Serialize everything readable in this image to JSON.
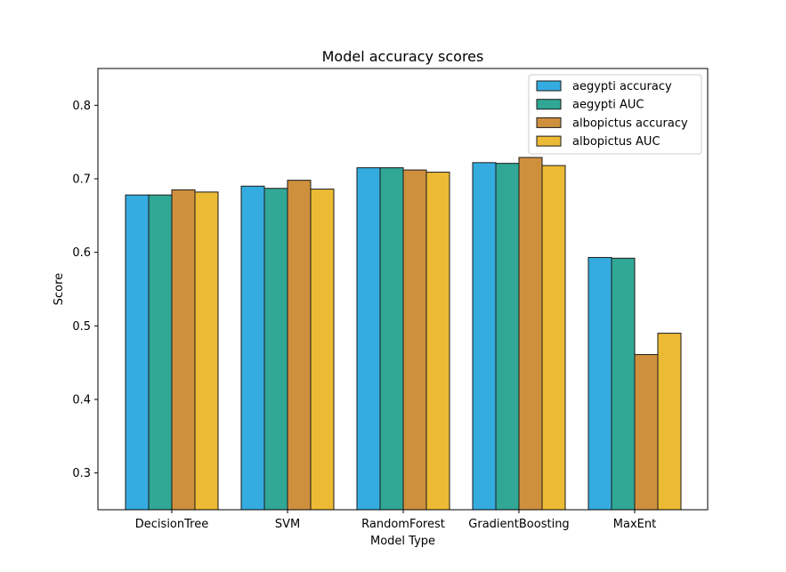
{
  "chart_data": {
    "type": "bar",
    "title": "Model accuracy scores",
    "xlabel": "Model Type",
    "ylabel": "Score",
    "ylim": [
      0.25,
      0.85
    ],
    "yticks": [
      "0.3",
      "0.4",
      "0.5",
      "0.6",
      "0.7",
      "0.8"
    ],
    "grid": false,
    "legend_position": "top-right",
    "categories": [
      "DecisionTree",
      "SVM",
      "RandomForest",
      "GradientBoosting",
      "MaxEnt"
    ],
    "series": [
      {
        "name": "aegypti accuracy",
        "color": "#35ace0",
        "values": [
          0.678,
          0.69,
          0.715,
          0.722,
          0.593
        ]
      },
      {
        "name": "aegypti AUC",
        "color": "#31a796",
        "values": [
          0.678,
          0.687,
          0.715,
          0.721,
          0.592
        ]
      },
      {
        "name": "albopictus accuracy",
        "color": "#cf903e",
        "values": [
          0.685,
          0.698,
          0.712,
          0.729,
          0.461
        ]
      },
      {
        "name": "albopictus AUC",
        "color": "#ecba34",
        "values": [
          0.682,
          0.686,
          0.709,
          0.718,
          0.49
        ]
      }
    ]
  }
}
